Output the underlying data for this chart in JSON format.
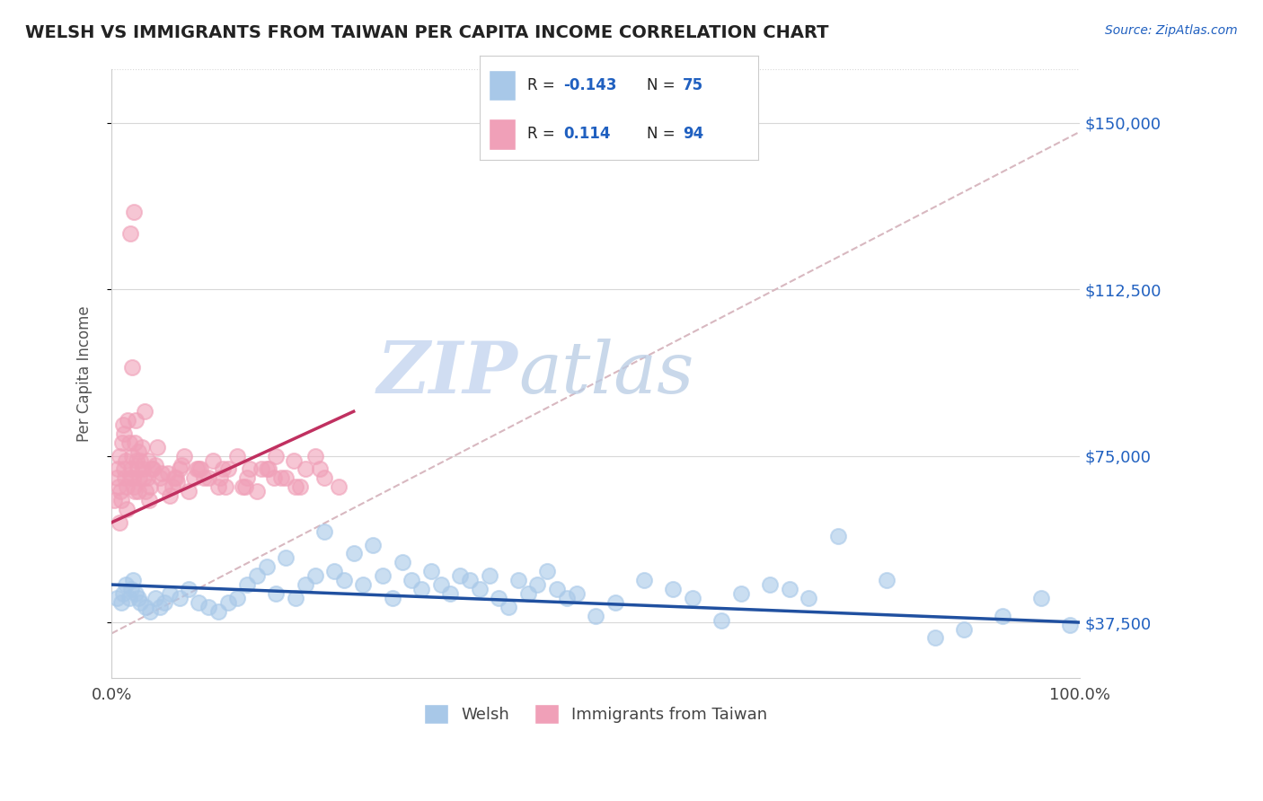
{
  "title": "WELSH VS IMMIGRANTS FROM TAIWAN PER CAPITA INCOME CORRELATION CHART",
  "source_text": "Source: ZipAtlas.com",
  "ylabel": "Per Capita Income",
  "xlim": [
    0,
    100
  ],
  "ylim": [
    25000,
    162000
  ],
  "yticks": [
    37500,
    75000,
    112500,
    150000
  ],
  "ytick_labels": [
    "$37,500",
    "$75,000",
    "$112,500",
    "$150,000"
  ],
  "xtick_labels": [
    "0.0%",
    "100.0%"
  ],
  "watermark_zip": "ZIP",
  "watermark_atlas": "atlas",
  "legend_welsh_R": "-0.143",
  "legend_welsh_N": "75",
  "legend_taiwan_R": "0.114",
  "legend_taiwan_N": "94",
  "welsh_color": "#a8c8e8",
  "taiwan_color": "#f0a0b8",
  "welsh_line_color": "#2050a0",
  "taiwan_line_color": "#c03060",
  "gray_dashed_color": "#d8b8c0",
  "background_color": "#ffffff",
  "plot_bg_color": "#ffffff",
  "grid_color": "#d8d8d8",
  "welsh_scatter_x": [
    0.5,
    1.0,
    1.2,
    1.5,
    1.8,
    2.0,
    2.2,
    2.5,
    2.8,
    3.0,
    3.5,
    4.0,
    4.5,
    5.0,
    5.5,
    6.0,
    7.0,
    8.0,
    9.0,
    10.0,
    11.0,
    12.0,
    13.0,
    14.0,
    15.0,
    16.0,
    17.0,
    18.0,
    19.0,
    20.0,
    21.0,
    22.0,
    23.0,
    24.0,
    25.0,
    26.0,
    27.0,
    28.0,
    29.0,
    30.0,
    31.0,
    32.0,
    33.0,
    34.0,
    35.0,
    36.0,
    37.0,
    38.0,
    39.0,
    40.0,
    41.0,
    42.0,
    43.0,
    44.0,
    45.0,
    46.0,
    47.0,
    48.0,
    50.0,
    52.0,
    55.0,
    58.0,
    60.0,
    63.0,
    65.0,
    68.0,
    70.0,
    72.0,
    75.0,
    80.0,
    85.0,
    88.0,
    92.0,
    96.0,
    99.0
  ],
  "welsh_scatter_y": [
    43000,
    42000,
    44000,
    46000,
    43000,
    45000,
    47000,
    44000,
    43000,
    42000,
    41000,
    40000,
    43000,
    41000,
    42000,
    44000,
    43000,
    45000,
    42000,
    41000,
    40000,
    42000,
    43000,
    46000,
    48000,
    50000,
    44000,
    52000,
    43000,
    46000,
    48000,
    58000,
    49000,
    47000,
    53000,
    46000,
    55000,
    48000,
    43000,
    51000,
    47000,
    45000,
    49000,
    46000,
    44000,
    48000,
    47000,
    45000,
    48000,
    43000,
    41000,
    47000,
    44000,
    46000,
    49000,
    45000,
    43000,
    44000,
    39000,
    42000,
    47000,
    45000,
    43000,
    38000,
    44000,
    46000,
    45000,
    43000,
    57000,
    47000,
    34000,
    36000,
    39000,
    43000,
    37000
  ],
  "taiwan_scatter_x": [
    0.3,
    0.5,
    0.6,
    0.7,
    0.8,
    0.9,
    1.0,
    1.1,
    1.2,
    1.3,
    1.4,
    1.5,
    1.6,
    1.7,
    1.8,
    1.9,
    2.0,
    2.1,
    2.2,
    2.3,
    2.4,
    2.5,
    2.6,
    2.7,
    2.8,
    2.9,
    3.0,
    3.1,
    3.2,
    3.3,
    3.5,
    3.7,
    4.0,
    4.3,
    4.7,
    5.0,
    5.5,
    6.0,
    6.5,
    7.0,
    7.5,
    8.0,
    9.0,
    10.0,
    11.0,
    12.0,
    13.0,
    14.0,
    15.0,
    16.0,
    17.0,
    18.0,
    19.0,
    20.0,
    21.0,
    22.0,
    23.5,
    4.5,
    5.2,
    6.8,
    8.5,
    10.5,
    2.3,
    1.9,
    3.4,
    2.1,
    5.8,
    7.2,
    9.5,
    11.5,
    13.5,
    15.5,
    17.5,
    19.5,
    21.5,
    3.8,
    6.3,
    8.8,
    11.2,
    13.8,
    16.2,
    18.8,
    1.3,
    2.8,
    4.2,
    6.7,
    9.2,
    11.8,
    14.3,
    16.8,
    0.8,
    1.6,
    2.4,
    3.9
  ],
  "taiwan_scatter_y": [
    65000,
    70000,
    72000,
    68000,
    75000,
    67000,
    65000,
    78000,
    82000,
    72000,
    70000,
    74000,
    68000,
    83000,
    78000,
    70000,
    72000,
    75000,
    70000,
    68000,
    78000,
    83000,
    74000,
    72000,
    67000,
    70000,
    74000,
    77000,
    72000,
    70000,
    67000,
    70000,
    68000,
    72000,
    77000,
    70000,
    68000,
    66000,
    70000,
    72000,
    75000,
    67000,
    72000,
    70000,
    68000,
    72000,
    75000,
    70000,
    67000,
    72000,
    75000,
    70000,
    68000,
    72000,
    75000,
    70000,
    68000,
    73000,
    71000,
    69000,
    70000,
    74000,
    130000,
    125000,
    85000,
    95000,
    71000,
    73000,
    70000,
    72000,
    68000,
    72000,
    70000,
    68000,
    72000,
    74000,
    68000,
    72000,
    70000,
    68000,
    72000,
    74000,
    80000,
    76000,
    72000,
    70000,
    72000,
    68000,
    72000,
    70000,
    60000,
    63000,
    67000,
    65000
  ],
  "gray_line_x0": 0,
  "gray_line_x1": 100,
  "gray_line_y0": 35000,
  "gray_line_y1": 148000,
  "welsh_line_x0": 0,
  "welsh_line_x1": 100,
  "welsh_line_y0": 46000,
  "welsh_line_y1": 37500,
  "taiwan_line_x0": 0,
  "taiwan_line_x1": 25,
  "taiwan_line_y0": 60000,
  "taiwan_line_y1": 85000
}
